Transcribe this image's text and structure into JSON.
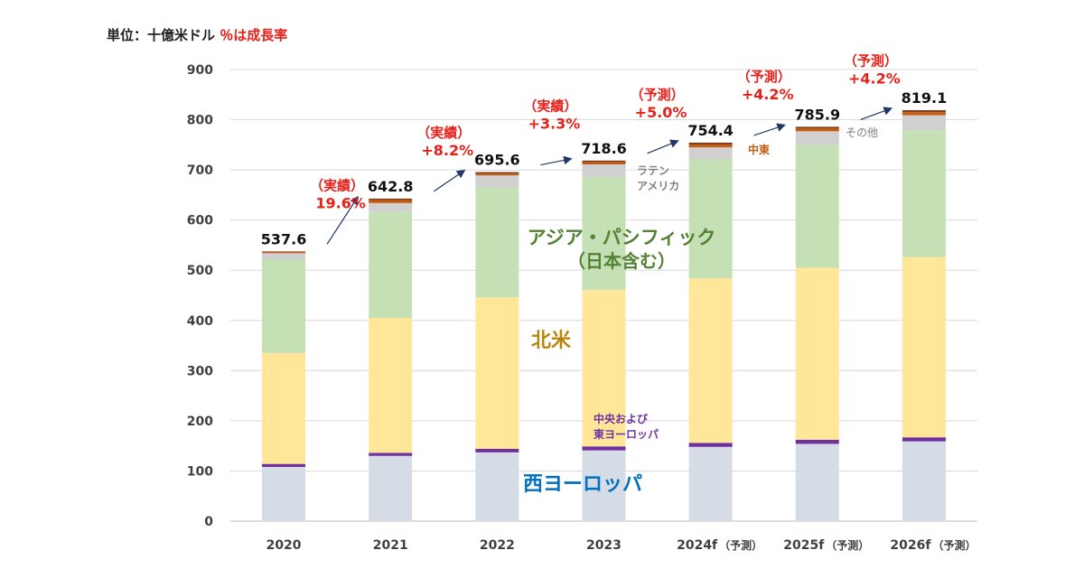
{
  "unit_label": {
    "prefix": "単位：十億米ドル",
    "growth_note": "％は成長率"
  },
  "colors": {
    "western_europe": "#d5dce6",
    "central_eastern_europe": "#7030a0",
    "north_america": "#ffe699",
    "asia_pacific": "#c5e0b4",
    "latin_america": "#d0d0d0",
    "middle_east": "#c55a11",
    "other": "#7f3f1f",
    "growth_text": "#e8201a",
    "arrow": "#1f3864",
    "label_asia": "#548235",
    "label_na": "#b8860b",
    "label_we": "#0070c0",
    "label_cee": "#7030a0",
    "label_latam": "#7f7f7f",
    "label_me": "#c55a11",
    "label_other": "#a6a6a6"
  },
  "chart_data": {
    "type": "bar",
    "stacked": true,
    "title": "",
    "xlabel": "",
    "ylabel": "",
    "ylim": [
      0,
      900
    ],
    "yticks": [
      0,
      100,
      200,
      300,
      400,
      500,
      600,
      700,
      800,
      900
    ],
    "grid": true,
    "categories": [
      "2020",
      "2021",
      "2022",
      "2023",
      "2024f",
      "2025f",
      "2026f"
    ],
    "category_suffix": [
      "",
      "",
      "",
      "",
      "（予測）",
      "（予測）",
      "（予測）"
    ],
    "series": [
      {
        "key": "western_europe",
        "values": [
          108,
          130,
          137,
          141,
          148,
          154,
          159
        ]
      },
      {
        "key": "central_eastern_europe",
        "values": [
          6,
          6,
          7,
          8,
          8,
          8,
          8
        ]
      },
      {
        "key": "north_america",
        "values": [
          221,
          269,
          302,
          312,
          328,
          343,
          359
        ]
      },
      {
        "key": "asia_pacific",
        "values": [
          187,
          211,
          219,
          225,
          237,
          245,
          253
        ]
      },
      {
        "key": "latin_america",
        "values": [
          12,
          18,
          24,
          25,
          24,
          27,
          30
        ]
      },
      {
        "key": "middle_east",
        "values": [
          2.6,
          5.8,
          3.6,
          4.6,
          5.4,
          5.9,
          6.1
        ]
      },
      {
        "key": "other",
        "values": [
          1,
          3,
          3,
          3,
          4,
          3,
          4
        ]
      }
    ],
    "totals": [
      "537.6",
      "642.8",
      "695.6",
      "718.6",
      "754.4",
      "785.9",
      "819.1"
    ],
    "growth_labels": [
      {
        "between": [
          0,
          1
        ],
        "line1": "（実績）",
        "line2": "19.6%"
      },
      {
        "between": [
          1,
          2
        ],
        "line1": "（実績）",
        "line2": "+8.2%"
      },
      {
        "between": [
          2,
          3
        ],
        "line1": "（実績）",
        "line2": "+3.3%"
      },
      {
        "between": [
          3,
          4
        ],
        "line1": "（予測）",
        "line2": "+5.0%"
      },
      {
        "between": [
          4,
          5
        ],
        "line1": "（予測）",
        "line2": "+4.2%"
      },
      {
        "between": [
          5,
          6
        ],
        "line1": "（予測）",
        "line2": "+4.2%"
      }
    ],
    "annotations": {
      "asia_pacific_1": "アジア・パシフィック",
      "asia_pacific_2": "（日本含む）",
      "north_america": "北米",
      "western_europe": "西ヨーロッパ",
      "cee_1": "中央および",
      "cee_2": "東ヨーロッパ",
      "latam_1": "ラテン",
      "latam_2": "アメリカ",
      "middle_east": "中東",
      "other": "その他"
    }
  }
}
